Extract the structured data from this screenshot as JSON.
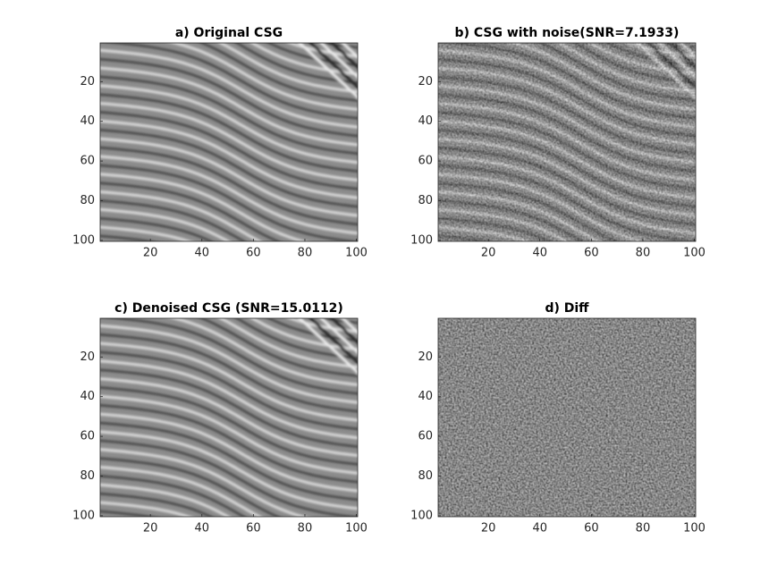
{
  "chart_data": [
    {
      "type": "image",
      "title": "a) Original CSG",
      "xlim": [
        0.5,
        100.5
      ],
      "ylim": [
        0.5,
        100.5
      ],
      "ydir": "reverse",
      "xticks": [
        20,
        40,
        60,
        80,
        100
      ],
      "yticks": [
        20,
        40,
        60,
        80,
        100
      ],
      "noise": false,
      "waves": true
    },
    {
      "type": "image",
      "title": "b) CSG with noise(SNR=7.1933)",
      "xlim": [
        0.5,
        100.5
      ],
      "ylim": [
        0.5,
        100.5
      ],
      "ydir": "reverse",
      "xticks": [
        20,
        40,
        60,
        80,
        100
      ],
      "yticks": [
        20,
        40,
        60,
        80,
        100
      ],
      "noise": true,
      "waves": true
    },
    {
      "type": "image",
      "title": "c) Denoised CSG (SNR=15.0112)",
      "xlim": [
        0.5,
        100.5
      ],
      "ylim": [
        0.5,
        100.5
      ],
      "ydir": "reverse",
      "xticks": [
        20,
        40,
        60,
        80,
        100
      ],
      "yticks": [
        20,
        40,
        60,
        80,
        100
      ],
      "noise": false,
      "waves": true
    },
    {
      "type": "image",
      "title": "d) Diff",
      "xlim": [
        0.5,
        100.5
      ],
      "ylim": [
        0.5,
        100.5
      ],
      "ydir": "reverse",
      "xticks": [
        20,
        40,
        60,
        80,
        100
      ],
      "yticks": [
        20,
        40,
        60,
        80,
        100
      ],
      "noise": true,
      "waves": false
    }
  ]
}
